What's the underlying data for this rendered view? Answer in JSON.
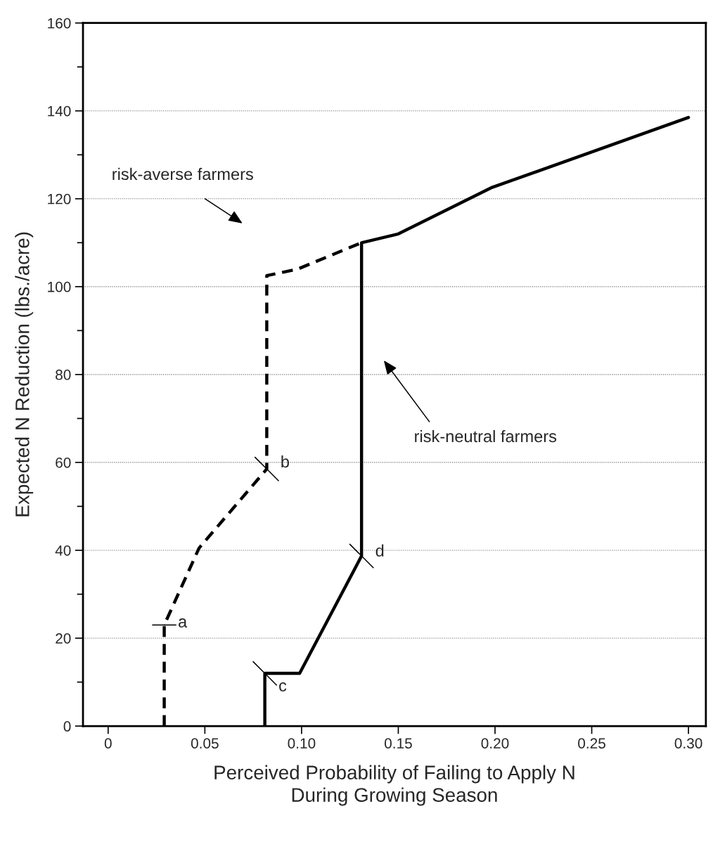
{
  "chart_data": {
    "type": "line",
    "xlabel": "Perceived Probability of Failing to Apply N\nDuring Growing Season",
    "ylabel": "Expected N Reduction (lbs./acre)",
    "series": [
      {
        "color": "#000000",
        "line_style": "dashed",
        "x": [
          0.029,
          0.029,
          0.047,
          0.082,
          0.082,
          0.098,
          0.131
        ],
        "values": [
          0,
          23,
          40.5,
          58.5,
          102.5,
          104,
          110
        ]
      },
      {
        "color": "#000000",
        "line_style": "solid",
        "x": [
          0.081,
          0.081,
          0.099,
          0.131,
          0.131,
          0.15,
          0.198,
          0.3
        ],
        "values": [
          0,
          12,
          12,
          38.7,
          110,
          112,
          122.5,
          138.5
        ]
      }
    ],
    "xlim": [
      -0.013,
      0.309
    ],
    "ylim": [
      0,
      160
    ],
    "xticks": [
      0,
      0.05,
      {
        "value": 0.1,
        "label": "0.10"
      },
      0.15,
      {
        "value": 0.2,
        "label": "0.20"
      },
      0.25,
      {
        "value": 0.3,
        "label": "0.30"
      }
    ],
    "yticks": [
      0,
      {
        "value": 10,
        "label": null
      },
      20,
      {
        "value": 30,
        "label": null
      },
      40,
      {
        "value": 50,
        "label": null
      },
      60,
      {
        "value": 70,
        "label": null
      },
      80,
      {
        "value": 90,
        "label": null
      },
      100,
      {
        "value": 110,
        "label": null
      },
      120,
      {
        "value": 130,
        "label": null
      },
      140,
      {
        "value": 150,
        "label": null
      },
      160
    ],
    "grid": "y",
    "marker": "none",
    "annotations": [
      "risk-averse farmers",
      "risk-neutral farmers",
      {
        "text": "a",
        "x": 0.029,
        "y": 23
      },
      {
        "text": "b",
        "x": 0.082,
        "y": 58.5
      },
      {
        "text": "c",
        "x": 0.081,
        "y": 12
      },
      {
        "text": "d",
        "x": 0.131,
        "y": 38.7
      }
    ]
  }
}
